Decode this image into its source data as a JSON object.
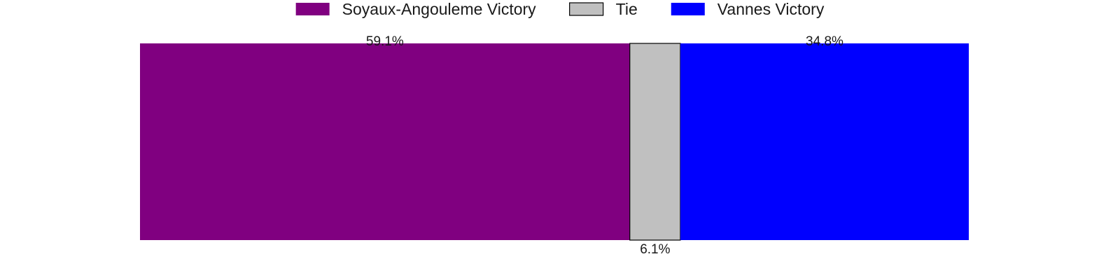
{
  "chart_data": {
    "type": "bar",
    "orientation": "horizontal-stacked",
    "categories": [
      ""
    ],
    "series": [
      {
        "name": "Soyaux-Angouleme Victory",
        "values": [
          59.1
        ],
        "color": "#800080",
        "label": "59.1%",
        "label_position": "top"
      },
      {
        "name": "Tie",
        "values": [
          6.1
        ],
        "color": "#c0c0c0",
        "label": "6.1%",
        "label_position": "bottom"
      },
      {
        "name": "Vannes Victory",
        "values": [
          34.8
        ],
        "color": "#0000ff",
        "label": "34.8%",
        "label_position": "top"
      }
    ],
    "title": "",
    "xlabel": "",
    "ylabel": "",
    "xlim": [
      0,
      100
    ],
    "grid": false,
    "axes_visible": false,
    "legend_placement": "top-center"
  }
}
